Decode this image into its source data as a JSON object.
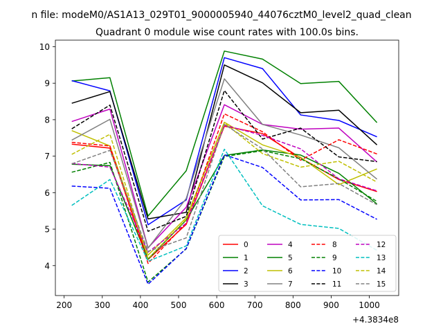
{
  "chart_data": {
    "type": "line",
    "suptitle": "n file: modeM0/AS1A13_029T01_9000005940_44076cztM0_level2_quad_clean",
    "title": "Quadrant 0 module wise count rates with 100.0s bins.",
    "xlabel": "",
    "ylabel": "",
    "x_offset_label": "+4.3834e8",
    "x": [
      220,
      320,
      420,
      520,
      620,
      720,
      820,
      920,
      1020
    ],
    "xlim": [
      177,
      1077
    ],
    "ylim": [
      3.18,
      10.18
    ],
    "x_ticks": [
      {
        "value": 200,
        "label": "200"
      },
      {
        "value": 300,
        "label": "300"
      },
      {
        "value": 400,
        "label": "400"
      },
      {
        "value": 500,
        "label": "500"
      },
      {
        "value": 600,
        "label": "600"
      },
      {
        "value": 700,
        "label": "700"
      },
      {
        "value": 800,
        "label": "800"
      },
      {
        "value": 900,
        "label": "900"
      },
      {
        "value": 1000,
        "label": "1000"
      }
    ],
    "y_ticks": [
      {
        "value": 4,
        "label": "4"
      },
      {
        "value": 5,
        "label": "5"
      },
      {
        "value": 6,
        "label": "6"
      },
      {
        "value": 7,
        "label": "7"
      },
      {
        "value": 8,
        "label": "8"
      },
      {
        "value": 9,
        "label": "9"
      },
      {
        "value": 10,
        "label": "10"
      }
    ],
    "grid": false,
    "legend": {
      "placement": "lower-right",
      "columns": 4
    },
    "series": [
      {
        "name": "0",
        "color": "#ff0000",
        "dash": "solid",
        "values": [
          7.33,
          7.22,
          4.17,
          5.13,
          7.82,
          7.62,
          6.95,
          6.36,
          6.03
        ]
      },
      {
        "name": "1",
        "color": "#008000",
        "dash": "solid",
        "values": [
          9.06,
          9.15,
          5.36,
          6.6,
          9.88,
          9.66,
          8.99,
          9.05,
          7.92
        ]
      },
      {
        "name": "2",
        "color": "#0000ff",
        "dash": "solid",
        "values": [
          9.07,
          8.79,
          5.12,
          5.8,
          9.7,
          9.4,
          8.13,
          7.98,
          7.53
        ]
      },
      {
        "name": "3",
        "color": "#000000",
        "dash": "solid",
        "values": [
          8.45,
          8.77,
          5.28,
          5.46,
          9.5,
          9.01,
          8.19,
          8.26,
          7.31
        ]
      },
      {
        "name": "4",
        "color": "#bf00bf",
        "dash": "solid",
        "values": [
          7.95,
          8.29,
          4.49,
          5.6,
          8.41,
          7.87,
          7.74,
          7.77,
          6.84
        ]
      },
      {
        "name": "5",
        "color": "#008000",
        "dash": "solid",
        "values": [
          6.78,
          6.74,
          4.18,
          5.25,
          7.02,
          7.17,
          7.03,
          6.53,
          5.69
        ]
      },
      {
        "name": "6",
        "color": "#bfbf00",
        "dash": "solid",
        "values": [
          7.7,
          7.28,
          4.29,
          5.31,
          7.93,
          7.31,
          6.97,
          6.22,
          6.65
        ]
      },
      {
        "name": "7",
        "color": "#808080",
        "dash": "solid",
        "values": [
          7.44,
          8.01,
          4.48,
          5.84,
          9.12,
          7.87,
          7.58,
          7.23,
          6.37
        ]
      },
      {
        "name": "8",
        "color": "#ff0000",
        "dash": "dashed",
        "values": [
          7.38,
          7.28,
          4.06,
          5.17,
          8.16,
          7.67,
          6.89,
          7.45,
          7.06
        ]
      },
      {
        "name": "9",
        "color": "#008000",
        "dash": "dashed",
        "values": [
          6.56,
          6.83,
          3.55,
          4.46,
          6.99,
          7.15,
          6.93,
          6.38,
          5.76
        ]
      },
      {
        "name": "10",
        "color": "#0000ff",
        "dash": "dashed",
        "values": [
          6.18,
          6.12,
          3.49,
          4.47,
          7.04,
          6.69,
          5.8,
          5.81,
          5.27
        ]
      },
      {
        "name": "11",
        "color": "#000000",
        "dash": "dashed",
        "values": [
          7.75,
          8.4,
          4.94,
          5.35,
          8.8,
          7.47,
          7.77,
          6.98,
          6.85
        ]
      },
      {
        "name": "12",
        "color": "#bf00bf",
        "dash": "dashed",
        "values": [
          6.8,
          6.7,
          4.37,
          5.16,
          7.85,
          7.57,
          7.2,
          6.38,
          6.05
        ]
      },
      {
        "name": "13",
        "color": "#00bfbf",
        "dash": "dashed",
        "values": [
          5.65,
          6.36,
          4.12,
          4.54,
          7.19,
          5.64,
          5.13,
          5.02,
          4.42
        ]
      },
      {
        "name": "14",
        "color": "#bfbf00",
        "dash": "dashed",
        "values": [
          7.05,
          7.6,
          4.19,
          5.27,
          7.91,
          7.07,
          6.7,
          6.86,
          6.29
        ]
      },
      {
        "name": "15",
        "color": "#808080",
        "dash": "dashed",
        "values": [
          6.79,
          7.16,
          4.39,
          4.76,
          7.87,
          7.2,
          6.16,
          6.25,
          5.67
        ]
      }
    ]
  }
}
